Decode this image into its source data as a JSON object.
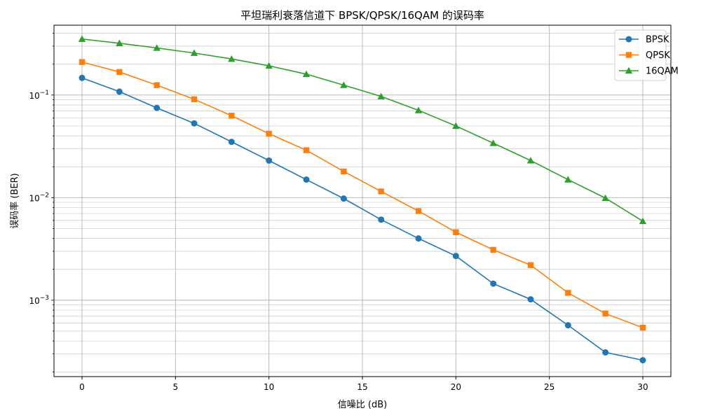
{
  "chart_data": {
    "type": "line",
    "title": "平坦瑞利衰落信道下 BPSK/QPSK/16QAM 的误码率",
    "xlabel": "信噪比 (dB)",
    "ylabel": "误码率 (BER)",
    "xlim": [
      -1.5,
      31.5
    ],
    "ylim": [
      0.00018,
      0.48
    ],
    "yscale": "log",
    "grid": "major and minor",
    "legend_position": "top-right",
    "x_ticks": [
      0,
      5,
      10,
      15,
      20,
      25,
      30
    ],
    "x_tick_labels": [
      "0",
      "5",
      "10",
      "15",
      "20",
      "25",
      "30"
    ],
    "y_ticks": [
      {
        "value": 0.001,
        "base": "10",
        "exp": "−3"
      },
      {
        "value": 0.01,
        "base": "10",
        "exp": "−2"
      },
      {
        "value": 0.1,
        "base": "10",
        "exp": "−1"
      }
    ],
    "x": [
      0,
      2,
      4,
      6,
      8,
      10,
      12,
      14,
      16,
      18,
      20,
      22,
      24,
      26,
      28,
      30
    ],
    "series": [
      {
        "name": "BPSK",
        "color": "#1f77b4",
        "marker": "circle",
        "values": [
          0.147,
          0.108,
          0.075,
          0.053,
          0.035,
          0.023,
          0.015,
          0.0098,
          0.0061,
          0.004,
          0.0027,
          0.00145,
          0.00102,
          0.00057,
          0.00031,
          0.00026
        ]
      },
      {
        "name": "QPSK",
        "color": "#ff7f0e",
        "marker": "square",
        "values": [
          0.21,
          0.168,
          0.125,
          0.091,
          0.063,
          0.042,
          0.029,
          0.018,
          0.0115,
          0.0074,
          0.0046,
          0.0031,
          0.0022,
          0.00118,
          0.00074,
          0.00054
        ]
      },
      {
        "name": "16QAM",
        "color": "#2ca02c",
        "marker": "triangle",
        "values": [
          0.352,
          0.32,
          0.288,
          0.257,
          0.225,
          0.193,
          0.16,
          0.125,
          0.097,
          0.071,
          0.05,
          0.034,
          0.023,
          0.015,
          0.0099,
          0.0059
        ]
      }
    ]
  }
}
